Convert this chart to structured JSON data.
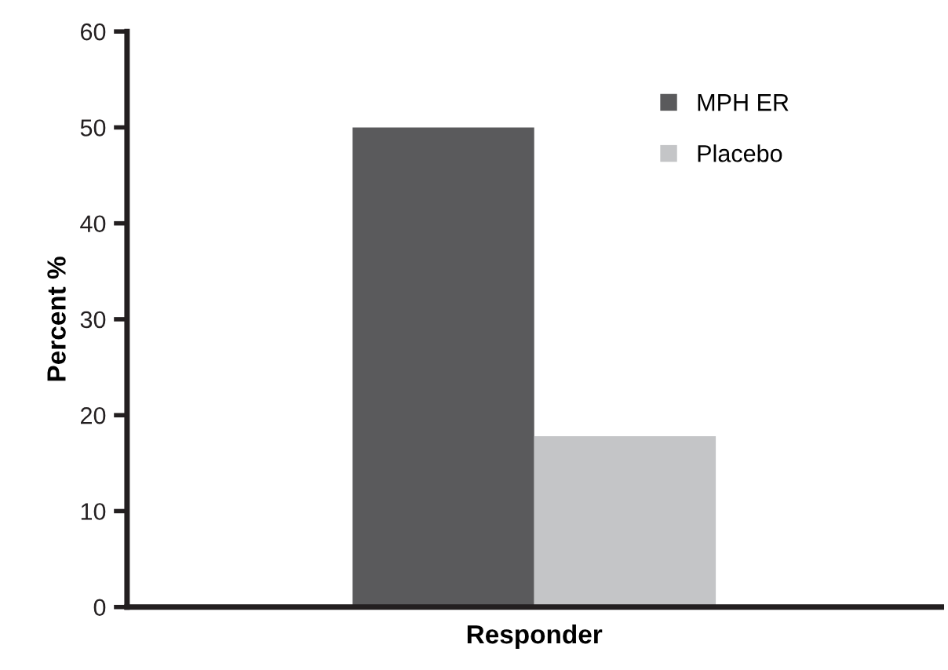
{
  "chart_data": {
    "type": "bar",
    "categories": [
      "Responder"
    ],
    "ylabel": "Percent %",
    "series": [
      {
        "name": "MPH ER",
        "color": "#5a5a5c",
        "values": [
          50
        ]
      },
      {
        "name": "Placebo",
        "color": "#c4c5c7",
        "values": [
          17.8
        ]
      }
    ],
    "ylim": [
      0,
      60
    ],
    "yticks": [
      0,
      10,
      20,
      30,
      40,
      50,
      60
    ],
    "grid": false,
    "legend": "top right"
  }
}
